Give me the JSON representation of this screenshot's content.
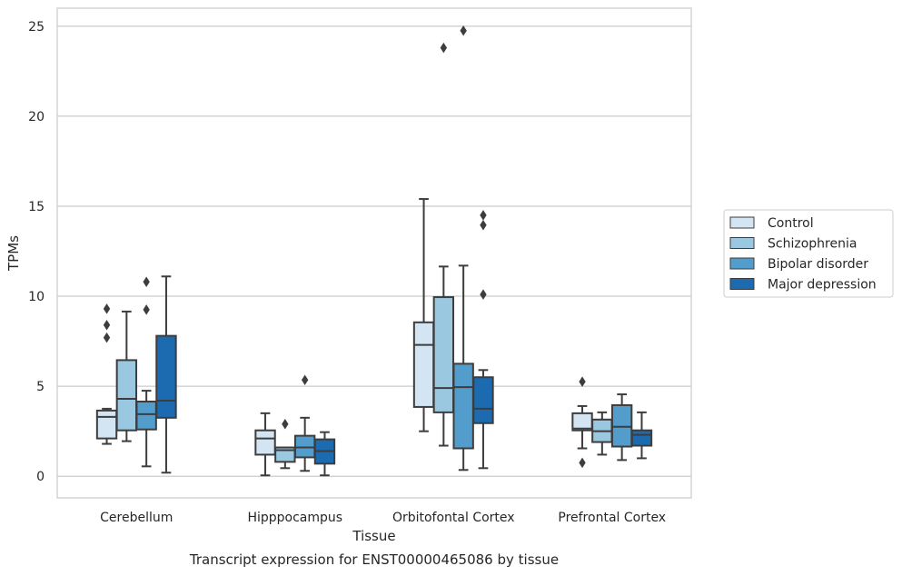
{
  "chart_data": {
    "type": "boxplot",
    "title": "",
    "caption": "Transcript expression for ENST00000465086 by tissue",
    "xlabel": "Tissue",
    "ylabel": "TPMs",
    "ylim": [
      -1.2,
      26
    ],
    "yticks": [
      0,
      5,
      10,
      15,
      20,
      25
    ],
    "grid": "horizontal",
    "legend_position": "right",
    "categories": [
      "Cerebellum",
      "Hipppocampus",
      "Orbitofontal Cortex",
      "Prefrontal Cortex"
    ],
    "series": [
      {
        "name": "Control",
        "color": "#d3e4f3",
        "boxes": [
          {
            "whislo": 1.8,
            "q1": 2.1,
            "med": 3.3,
            "q3": 3.65,
            "whishi": 3.75,
            "fliers": [
              7.7,
              8.4,
              9.3
            ]
          },
          {
            "whislo": 0.05,
            "q1": 1.2,
            "med": 2.1,
            "q3": 2.55,
            "whishi": 3.5,
            "fliers": []
          },
          {
            "whislo": 2.5,
            "q1": 3.85,
            "med": 7.3,
            "q3": 8.55,
            "whishi": 15.4,
            "fliers": []
          },
          {
            "whislo": 1.55,
            "q1": 2.55,
            "med": 2.65,
            "q3": 3.5,
            "whishi": 3.9,
            "fliers": [
              0.75,
              5.25
            ]
          }
        ]
      },
      {
        "name": "Schizophrenia",
        "color": "#9ac8e0",
        "boxes": [
          {
            "whislo": 1.95,
            "q1": 2.55,
            "med": 4.3,
            "q3": 6.45,
            "whishi": 9.15,
            "fliers": []
          },
          {
            "whislo": 0.45,
            "q1": 0.8,
            "med": 1.45,
            "q3": 1.6,
            "whishi": 1.6,
            "fliers": [
              2.9
            ]
          },
          {
            "whislo": 1.7,
            "q1": 3.55,
            "med": 4.9,
            "q3": 9.95,
            "whishi": 11.65,
            "fliers": [
              23.8
            ]
          },
          {
            "whislo": 1.2,
            "q1": 1.9,
            "med": 2.5,
            "q3": 3.15,
            "whishi": 3.55,
            "fliers": []
          }
        ]
      },
      {
        "name": "Bipolar disorder",
        "color": "#529dcc",
        "boxes": [
          {
            "whislo": 0.55,
            "q1": 2.6,
            "med": 3.45,
            "q3": 4.15,
            "whishi": 4.75,
            "fliers": [
              9.25,
              10.8
            ]
          },
          {
            "whislo": 0.3,
            "q1": 1.05,
            "med": 1.6,
            "q3": 2.25,
            "whishi": 3.25,
            "fliers": [
              5.35
            ]
          },
          {
            "whislo": 0.35,
            "q1": 1.55,
            "med": 4.95,
            "q3": 6.25,
            "whishi": 11.7,
            "fliers": [
              24.75
            ]
          },
          {
            "whislo": 0.9,
            "q1": 1.65,
            "med": 2.75,
            "q3": 3.95,
            "whishi": 4.55,
            "fliers": []
          }
        ]
      },
      {
        "name": "Major depression",
        "color": "#1c6aaf",
        "boxes": [
          {
            "whislo": 0.2,
            "q1": 3.25,
            "med": 4.2,
            "q3": 7.8,
            "whishi": 11.1,
            "fliers": []
          },
          {
            "whislo": 0.05,
            "q1": 0.7,
            "med": 1.4,
            "q3": 2.05,
            "whishi": 2.45,
            "fliers": []
          },
          {
            "whislo": 0.45,
            "q1": 2.95,
            "med": 3.75,
            "q3": 5.5,
            "whishi": 5.9,
            "fliers": [
              10.1,
              13.95,
              14.5
            ]
          },
          {
            "whislo": 1.0,
            "q1": 1.7,
            "med": 2.3,
            "q3": 2.55,
            "whishi": 3.55,
            "fliers": []
          }
        ]
      }
    ]
  }
}
